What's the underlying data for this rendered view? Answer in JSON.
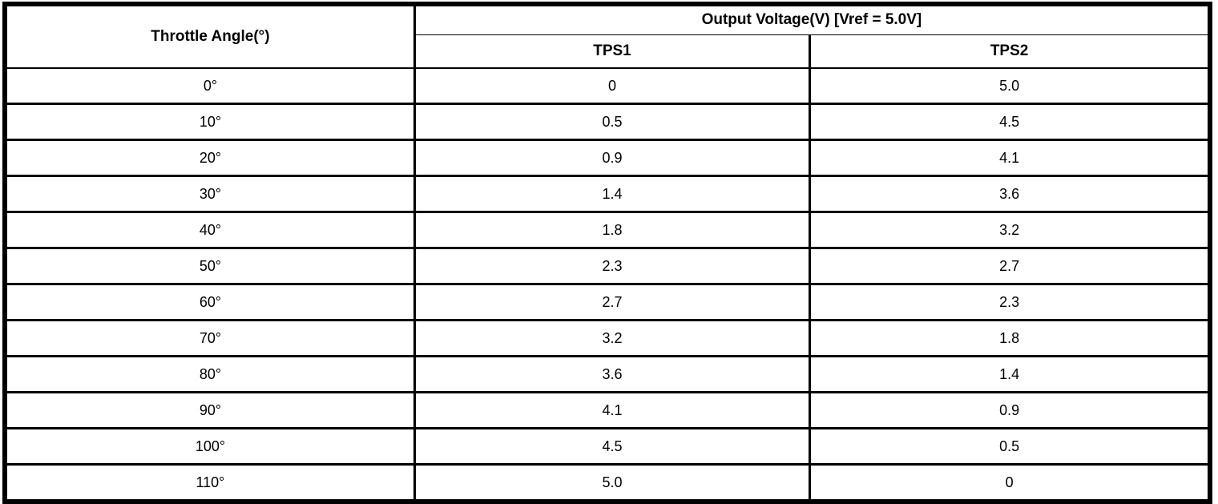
{
  "colors": {
    "border": "#000000",
    "background": "#ffffff",
    "text": "#000000"
  },
  "table": {
    "column1_header": "Throttle Angle(°)",
    "group_header": "Output Voltage(V) [Vref = 5.0V]",
    "sub_headers": {
      "tps1": "TPS1",
      "tps2": "TPS2"
    },
    "rows": [
      {
        "angle": "0°",
        "tps1": "0",
        "tps2": "5.0"
      },
      {
        "angle": "10°",
        "tps1": "0.5",
        "tps2": "4.5"
      },
      {
        "angle": "20°",
        "tps1": "0.9",
        "tps2": "4.1"
      },
      {
        "angle": "30°",
        "tps1": "1.4",
        "tps2": "3.6"
      },
      {
        "angle": "40°",
        "tps1": "1.8",
        "tps2": "3.2"
      },
      {
        "angle": "50°",
        "tps1": "2.3",
        "tps2": "2.7"
      },
      {
        "angle": "60°",
        "tps1": "2.7",
        "tps2": "2.3"
      },
      {
        "angle": "70°",
        "tps1": "3.2",
        "tps2": "1.8"
      },
      {
        "angle": "80°",
        "tps1": "3.6",
        "tps2": "1.4"
      },
      {
        "angle": "90°",
        "tps1": "4.1",
        "tps2": "0.9"
      },
      {
        "angle": "100°",
        "tps1": "4.5",
        "tps2": "0.5"
      },
      {
        "angle": "110°",
        "tps1": "5.0",
        "tps2": "0"
      }
    ]
  }
}
